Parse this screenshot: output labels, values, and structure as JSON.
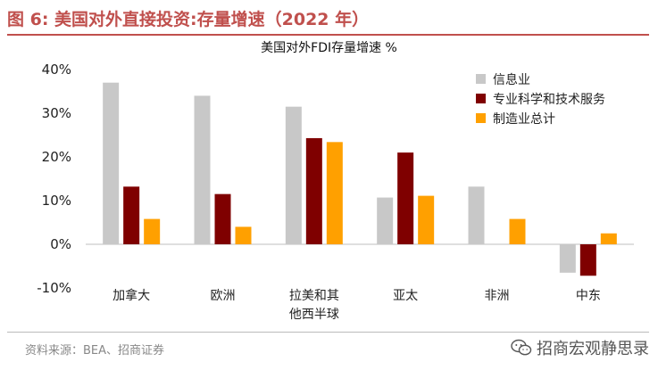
{
  "figure": {
    "title": "图 6:  美国对外直接投资:存量增速（2022 年）",
    "source": "资料来源：BEA、招商证券",
    "watermark": "招商宏观静思录",
    "watermark_icon": "wechat-icon"
  },
  "colors": {
    "accent": "#c0504d",
    "series": [
      "#c8c8c8",
      "#7f0000",
      "#ffa000"
    ]
  },
  "chart_data": {
    "type": "bar",
    "title": "美国对外FDI存量增速 %",
    "xlabel": "",
    "ylabel": "",
    "categories": [
      [
        "加拿大"
      ],
      [
        "欧洲"
      ],
      [
        "拉美和其",
        "他西半球"
      ],
      [
        "亚太"
      ],
      [
        "非洲"
      ],
      [
        "中东"
      ]
    ],
    "series": [
      {
        "name": "信息业",
        "values": [
          37,
          34,
          31.5,
          10.7,
          13.2,
          -6.5
        ]
      },
      {
        "name": "专业科学和技术服务",
        "values": [
          13.2,
          11.5,
          24.3,
          21.0,
          null,
          -7.2
        ]
      },
      {
        "name": "制造业总计",
        "values": [
          5.8,
          4.0,
          23.4,
          11.1,
          5.8,
          2.5
        ]
      }
    ],
    "yticks": [
      "-10%",
      "0%",
      "10%",
      "20%",
      "30%",
      "40%"
    ],
    "ylim": [
      -10,
      40
    ],
    "grid": false,
    "legend_position": "top-right"
  }
}
